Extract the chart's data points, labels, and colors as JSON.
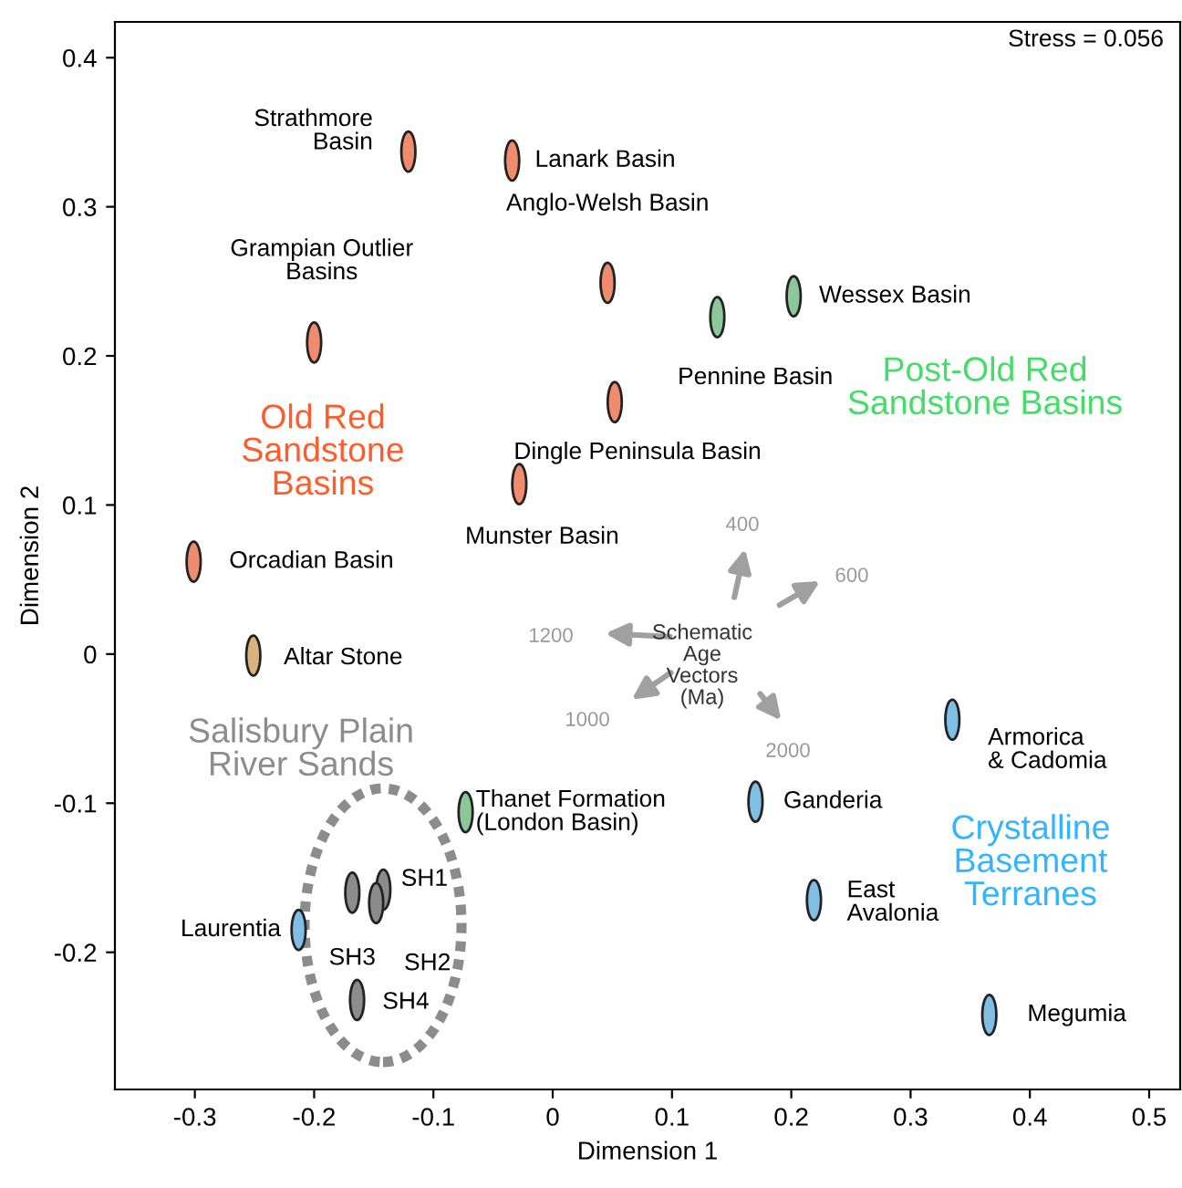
{
  "chart_data": {
    "type": "scatter",
    "xlabel": "Dimension 1",
    "ylabel": "Dimension 2",
    "xlim": [
      -0.367,
      0.526
    ],
    "ylim": [
      -0.292,
      0.424
    ],
    "xticks": [
      -0.3,
      -0.2,
      -0.1,
      0,
      0.1,
      0.2,
      0.3,
      0.4,
      0.5
    ],
    "yticks": [
      -0.2,
      -0.1,
      0,
      0.1,
      0.2,
      0.3,
      0.4
    ],
    "grid": false,
    "legend": false,
    "series": [
      {
        "name": "Old Red Sandstone Basins",
        "color": "#ef8c6e",
        "x": [
          -0.121,
          -0.034,
          0.046,
          -0.2,
          0.052,
          -0.028,
          -0.301
        ],
        "values": [
          0.337,
          0.331,
          0.249,
          0.209,
          0.169,
          0.114,
          0.062
        ]
      },
      {
        "name": "Post-Old Red Sandstone Basins",
        "color": "#8cc79a",
        "x": [
          0.202,
          0.138,
          -0.073
        ],
        "values": [
          0.24,
          0.226,
          -0.106
        ]
      },
      {
        "name": "Crystalline Basement Terranes",
        "color": "#80bfe3",
        "x": [
          0.17,
          0.335,
          0.219,
          0.366,
          -0.213
        ],
        "values": [
          -0.099,
          -0.044,
          -0.165,
          -0.242,
          -0.185
        ]
      },
      {
        "name": "Salisbury Plain River Sands",
        "color": "#8c8c8c",
        "x": [
          -0.142,
          -0.148,
          -0.168,
          -0.164
        ],
        "values": [
          -0.158,
          -0.167,
          -0.16,
          -0.232
        ]
      },
      {
        "color": "#d9b27f",
        "x": [
          -0.251
        ],
        "values": [
          -0.001
        ]
      }
    ],
    "annotations": [
      "Stress = 0.056",
      "Schematic\nAge\nVectors\n(Ma)",
      "400",
      "600",
      "1200",
      "1000",
      "2000",
      {
        "text": "Strathmore\nBasin",
        "x": -0.121,
        "y": 0.337
      },
      {
        "text": "Lanark Basin",
        "x": -0.034,
        "y": 0.331
      },
      {
        "text": "Anglo-Welsh Basin",
        "x": 0.046,
        "y": 0.249
      },
      {
        "text": "Grampian Outlier\nBasins",
        "x": -0.2,
        "y": 0.209
      },
      {
        "text": "Dingle Peninsula Basin",
        "x": 0.052,
        "y": 0.169
      },
      {
        "text": "Munster Basin",
        "x": -0.028,
        "y": 0.114
      },
      {
        "text": "Orcadian Basin",
        "x": -0.301,
        "y": 0.062
      },
      {
        "text": "Wessex Basin",
        "x": 0.202,
        "y": 0.24
      },
      {
        "text": "Pennine Basin",
        "x": 0.138,
        "y": 0.226
      },
      {
        "text": "Thanet Formation\n(London Basin)",
        "x": -0.073,
        "y": -0.106
      },
      {
        "text": "Ganderia",
        "x": 0.17,
        "y": -0.099
      },
      {
        "text": "Armorica\n& Cadomia",
        "x": 0.335,
        "y": -0.044
      },
      {
        "text": "East\nAvalonia",
        "x": 0.219,
        "y": -0.165
      },
      {
        "text": "Megumia",
        "x": 0.366,
        "y": -0.242
      },
      {
        "text": "Laurentia",
        "x": -0.213,
        "y": -0.185
      },
      {
        "text": "SH1",
        "x": -0.142,
        "y": -0.158
      },
      {
        "text": "SH2",
        "x": -0.148,
        "y": -0.167
      },
      {
        "text": "SH3",
        "x": -0.168,
        "y": -0.16
      },
      {
        "text": "SH4",
        "x": -0.164,
        "y": -0.232
      },
      {
        "text": "Altar Stone",
        "x": -0.251,
        "y": -0.001
      }
    ]
  }
}
